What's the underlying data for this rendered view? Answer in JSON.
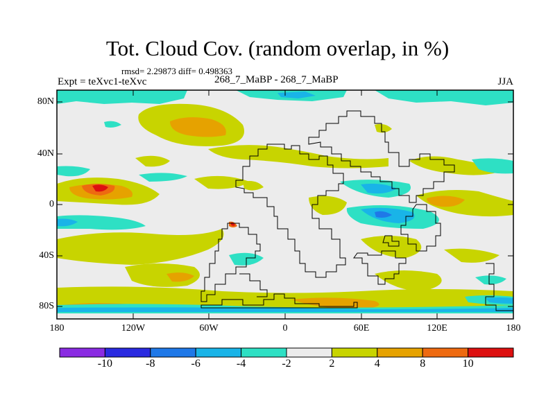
{
  "title": "Tot. Cloud Cov. (random overlap, in %)",
  "stats": "rmsd= 2.29873 diff= 0.498363",
  "expt": "Expt = teXvc1-teXvc",
  "case": "268_7_MaBP - 268_7_MaBP",
  "season": "JJA",
  "map": {
    "lat_range": [
      -90,
      90
    ],
    "lon_range": [
      -180,
      180
    ],
    "lat_ticks": [
      "80N",
      "40N",
      "0",
      "40S",
      "80S"
    ],
    "lon_ticks": [
      "180",
      "120W",
      "60W",
      "0",
      "60E",
      "120E",
      "180"
    ]
  },
  "colorbar": {
    "levels": [
      -10,
      -8,
      -6,
      -4,
      -2,
      2,
      4,
      8,
      10
    ],
    "labels": [
      "-10",
      "-8",
      "-6",
      "-4",
      "-2",
      "2",
      "4",
      "8",
      "10"
    ],
    "colors": [
      "#8a2be2",
      "#2a2ae0",
      "#1f78e8",
      "#19b4e8",
      "#2ee0c4",
      "#ececec",
      "#c8d400",
      "#e6a200",
      "#ee6a10",
      "#dd1010"
    ]
  },
  "colors": {
    "gray": "#ececec",
    "teal": "#2ee0c4",
    "cyan": "#19b4e8",
    "blue": "#1f78e8",
    "yellow": "#c8d400",
    "orange": "#e6a200",
    "darkorange": "#ee6a10",
    "red": "#dd1010"
  }
}
